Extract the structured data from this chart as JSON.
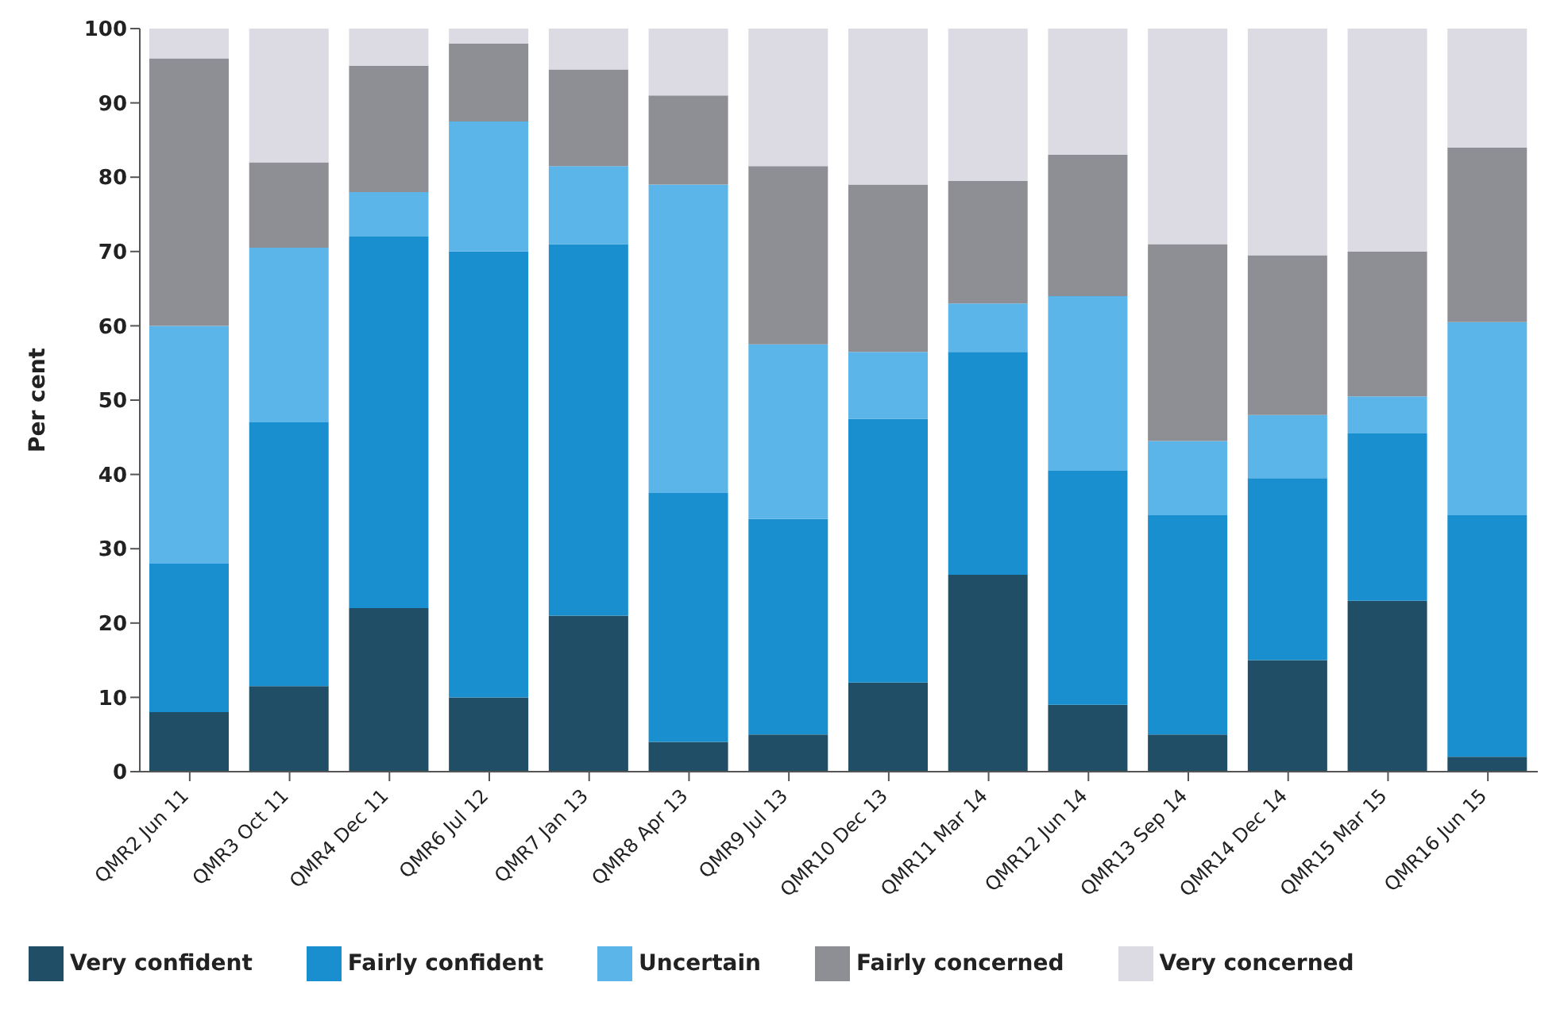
{
  "chart_data": {
    "type": "bar",
    "stacked": true,
    "ylabel": "Per cent",
    "ylim": [
      0,
      100
    ],
    "yticks": [
      0,
      10,
      20,
      30,
      40,
      50,
      60,
      70,
      80,
      90,
      100
    ],
    "grid": false,
    "legend": "bottom left",
    "categories": [
      "QMR2 Jun 11",
      "QMR3 Oct 11",
      "QMR4 Dec 11",
      "QMR6 Jul 12",
      "QMR7 Jan 13",
      "QMR8 Apr 13",
      "QMR9 Jul 13",
      "QMR10 Dec 13",
      "QMR11 Mar 14",
      "QMR12 Jun 14",
      "QMR13 Sep 14",
      "QMR14 Dec 14",
      "QMR15 Mar 15",
      "QMR16 Jun 15"
    ],
    "series": [
      {
        "name": "Very confident",
        "color": "#1f4e66",
        "values": [
          8,
          11.5,
          22,
          10,
          21,
          4,
          5,
          12,
          26.5,
          9,
          5,
          15,
          23,
          2
        ]
      },
      {
        "name": "Fairly confident",
        "color": "#1a8fd0",
        "values": [
          20,
          35.5,
          50,
          60,
          50,
          33.5,
          29,
          35.5,
          30,
          31.5,
          29.5,
          24.5,
          22.5,
          32.5
        ]
      },
      {
        "name": "Uncertain",
        "color": "#5bb5e8",
        "values": [
          32,
          23.5,
          6,
          17.5,
          10.5,
          41.5,
          23.5,
          9,
          6.5,
          23.5,
          10,
          8.5,
          5,
          26
        ]
      },
      {
        "name": "Fairly concerned",
        "color": "#8e8e95",
        "values": [
          36,
          11.5,
          17,
          10.5,
          13,
          12,
          24,
          22.5,
          16.5,
          19,
          26.5,
          21.5,
          19.5,
          23.5
        ]
      },
      {
        "name": "Very concerned",
        "color": "#dcdae3",
        "values": [
          4,
          18,
          5,
          2,
          5.5,
          9,
          18.5,
          21,
          20.5,
          17,
          29,
          30.5,
          30,
          16
        ]
      }
    ]
  }
}
